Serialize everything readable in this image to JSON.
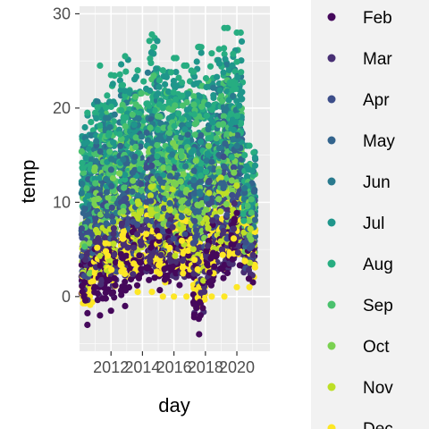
{
  "chart_data": {
    "type": "scatter",
    "xlabel": "day",
    "ylabel": "temp",
    "x_ticks": [
      2012,
      2014,
      2016,
      2018,
      2020
    ],
    "y_ticks": [
      0,
      10,
      20,
      30
    ],
    "xlim": [
      2010.0,
      2022.1
    ],
    "ylim": [
      -5.8,
      30.8
    ],
    "grid": true,
    "legend": {
      "position": "right",
      "entries": [
        {
          "label": "Feb",
          "color": "#45085b"
        },
        {
          "label": "Mar",
          "color": "#482f74"
        },
        {
          "label": "Apr",
          "color": "#3d4e8a"
        },
        {
          "label": "May",
          "color": "#33648d"
        },
        {
          "label": "Jun",
          "color": "#297a8e"
        },
        {
          "label": "Jul",
          "color": "#1f968b"
        },
        {
          "label": "Aug",
          "color": "#27ad81"
        },
        {
          "label": "Sep",
          "color": "#4ac16d"
        },
        {
          "label": "Oct",
          "color": "#7ad151"
        },
        {
          "label": "Nov",
          "color": "#bddf26"
        },
        {
          "label": "Dec",
          "color": "#fde725"
        }
      ]
    },
    "series_summary": [
      {
        "year": 2010.5,
        "min": -3.0,
        "max": 19.5
      },
      {
        "year": 2011.3,
        "min": -2.0,
        "max": 24.5
      },
      {
        "year": 2012.0,
        "min": -1.5,
        "max": 23.5
      },
      {
        "year": 2012.9,
        "min": -1.0,
        "max": 25.5
      },
      {
        "year": 2013.7,
        "min": 0.5,
        "max": 24.0
      },
      {
        "year": 2014.6,
        "min": 0.5,
        "max": 27.8
      },
      {
        "year": 2015.3,
        "min": 0.0,
        "max": 24.0
      },
      {
        "year": 2016.0,
        "min": 0.0,
        "max": 25.3
      },
      {
        "year": 2016.8,
        "min": 0.0,
        "max": 24.5
      },
      {
        "year": 2017.6,
        "min": -4.0,
        "max": 26.5
      },
      {
        "year": 2018.4,
        "min": 0.0,
        "max": 25.8
      },
      {
        "year": 2019.2,
        "min": 0.0,
        "max": 28.5
      },
      {
        "year": 2020.0,
        "min": 1.0,
        "max": 28.0
      },
      {
        "year": 2020.8,
        "min": 1.0,
        "max": 16.0
      }
    ]
  }
}
